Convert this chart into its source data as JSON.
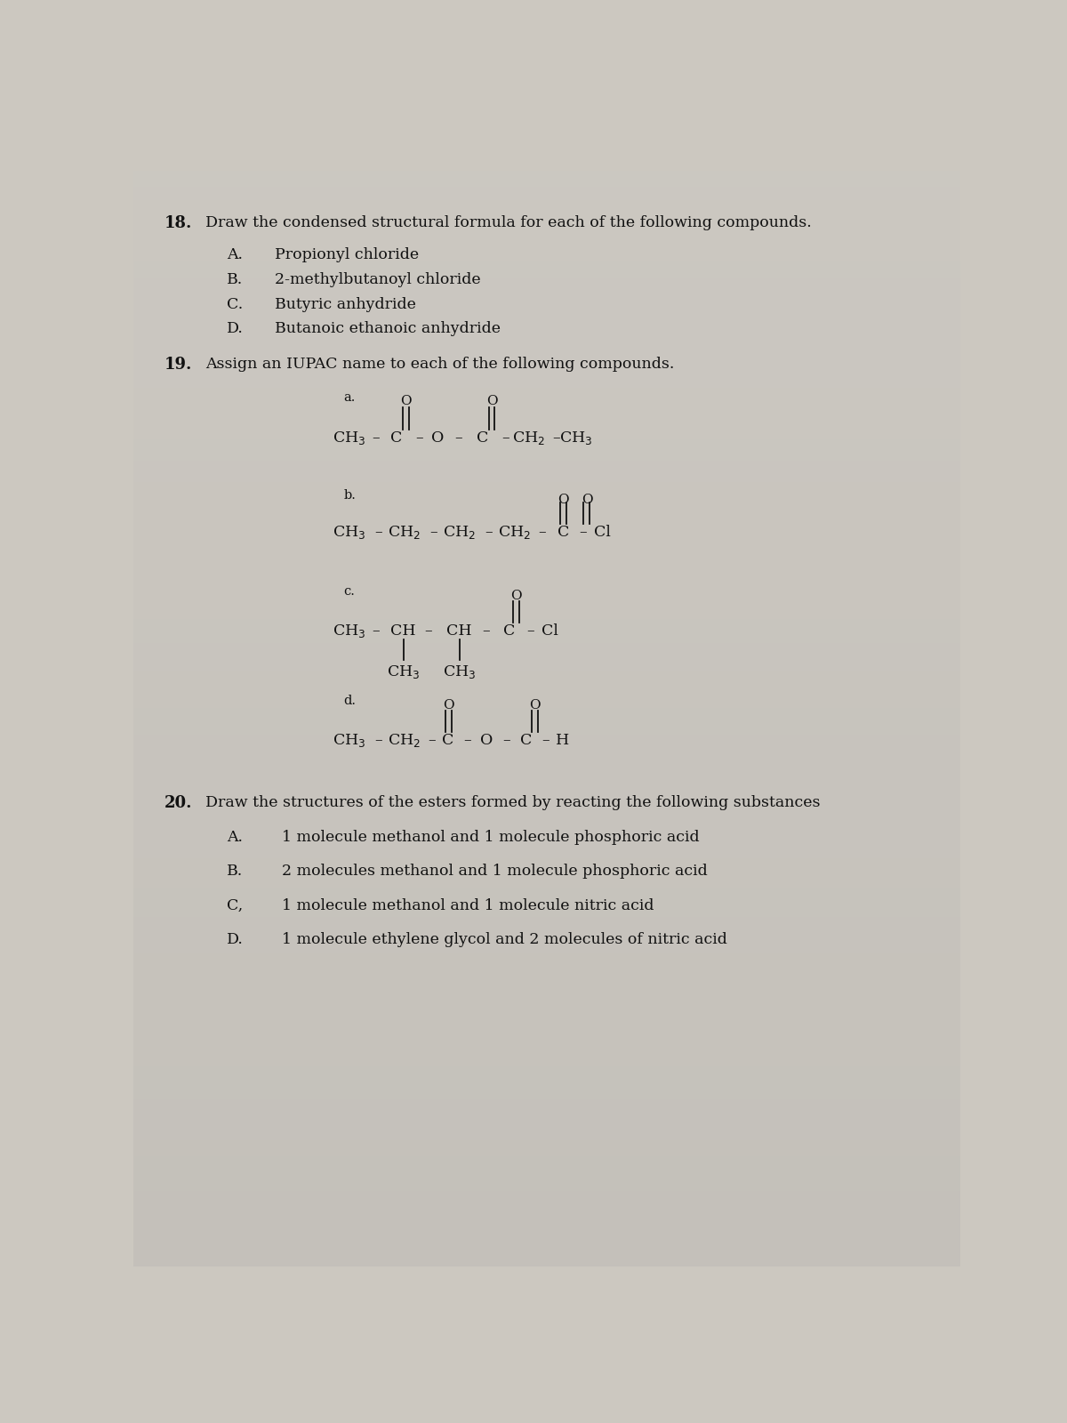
{
  "bg_color": "#ccc8c0",
  "text_color": "#111111",
  "q18_num": "18.",
  "q18_instruction": "Draw the condensed structural formula for each of the following compounds.",
  "q18_items": [
    [
      "A.",
      "Propionyl chloride"
    ],
    [
      "B.",
      "2-methylbutanoyl chloride"
    ],
    [
      "C.",
      "Butyric anhydride"
    ],
    [
      "D.",
      "Butanoic ethanoic anhydride"
    ]
  ],
  "q19_num": "19.",
  "q19_instruction": "Assign an IUPAC name to each of the following compounds.",
  "q20_num": "20.",
  "q20_instruction": "Draw the structures of the esters formed by reacting the following substances",
  "q20_items": [
    [
      "A.",
      "1 molecule methanol and 1 molecule phosphoric acid"
    ],
    [
      "B.",
      "2 molecules methanol and 1 molecule phosphoric acid"
    ],
    [
      "C,",
      "1 molecule methanol and 1 molecule nitric acid"
    ],
    [
      "D.",
      "1 molecule ethylene glycol and 2 molecules of nitric acid"
    ]
  ]
}
